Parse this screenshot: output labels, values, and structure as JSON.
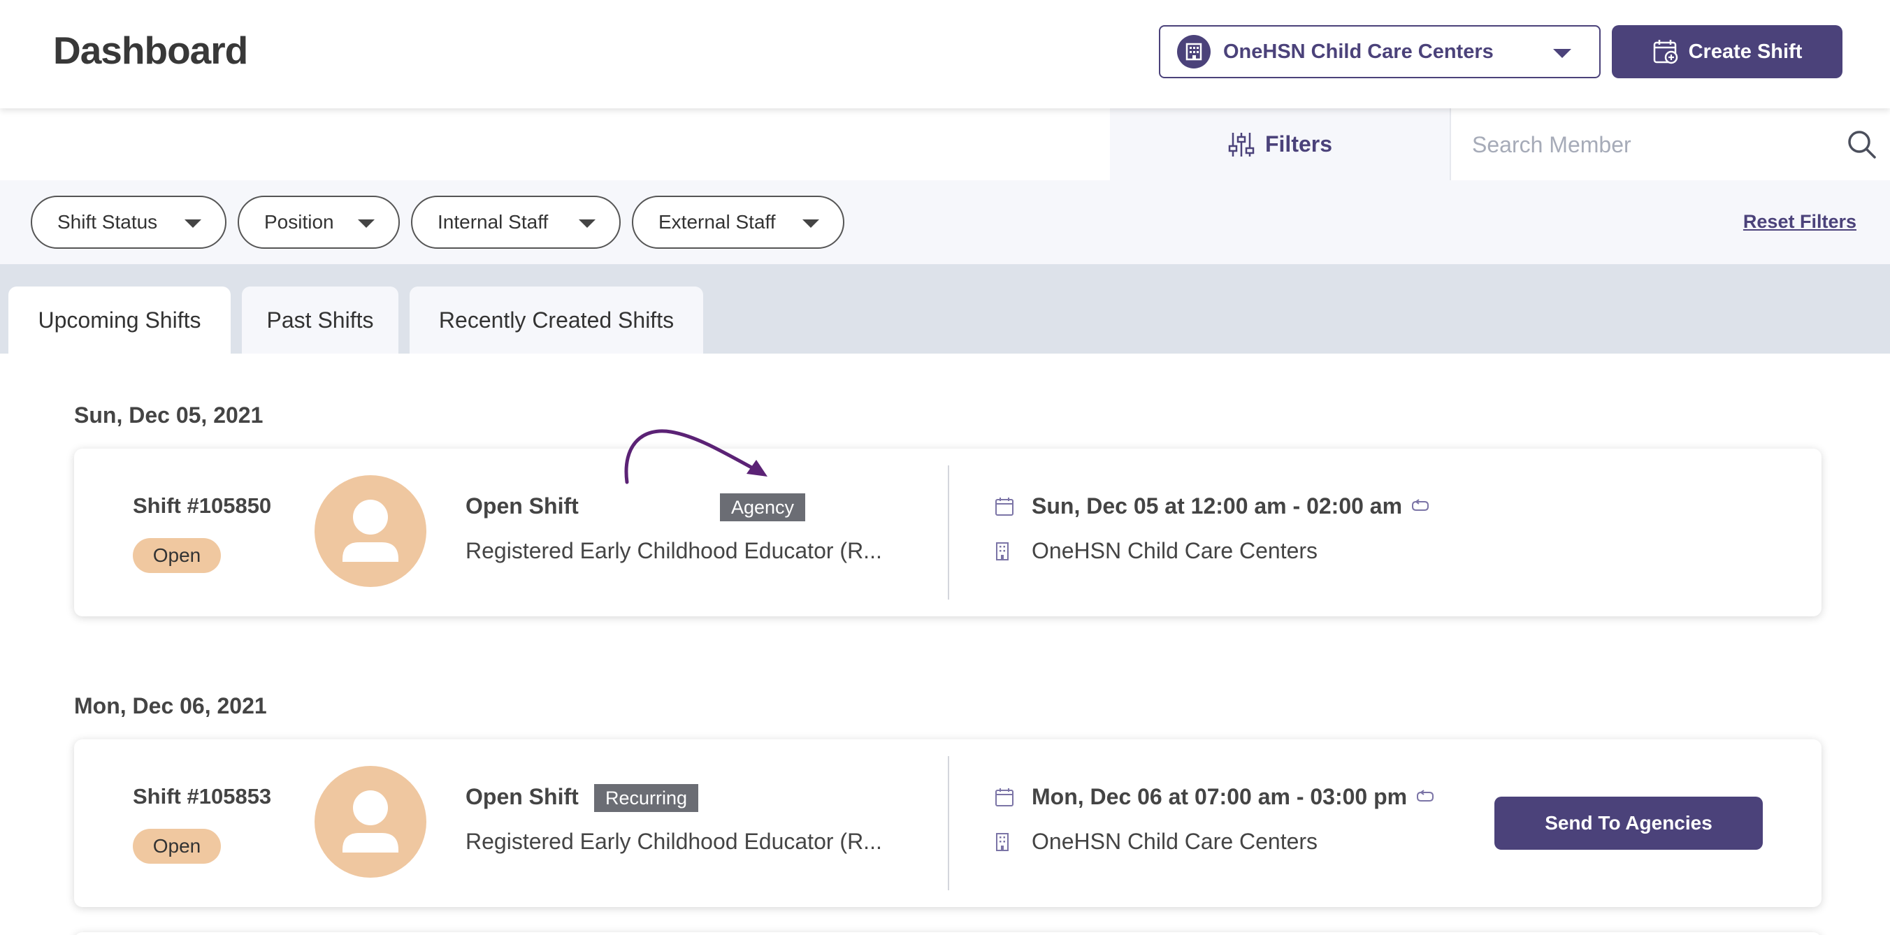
{
  "header": {
    "title": "Dashboard",
    "org_select": {
      "label": "OneHSN Child Care Centers",
      "icon": "building-icon"
    },
    "create_button": {
      "label": "Create Shift",
      "icon": "calendar-add-icon"
    }
  },
  "toolbar": {
    "filters_label": "Filters",
    "search_placeholder": "Search Member"
  },
  "chips": [
    {
      "label": "Shift Status"
    },
    {
      "label": "Position"
    },
    {
      "label": "Internal Staff"
    },
    {
      "label": "External Staff"
    }
  ],
  "reset_filters": "Reset Filters",
  "tabs": [
    {
      "label": "Upcoming Shifts",
      "active": true
    },
    {
      "label": "Past Shifts",
      "active": false
    },
    {
      "label": "Recently Created Shifts",
      "active": false
    }
  ],
  "groups": [
    {
      "date": "Sun, Dec 05, 2021",
      "shift": {
        "id": "Shift #105850",
        "status": "Open",
        "title": "Open Shift",
        "tag": "Agency",
        "position": "Registered Early Childhood Educator (R...",
        "time": "Sun, Dec 05 at 12:00 am - 02:00 am",
        "location": "OneHSN Child Care Centers"
      }
    },
    {
      "date": "Mon, Dec 06, 2021",
      "shift": {
        "id": "Shift #105853",
        "status": "Open",
        "title": "Open Shift",
        "tag": "Recurring",
        "position": "Registered Early Childhood Educator (R...",
        "time": "Mon, Dec 06 at 07:00 am - 03:00 pm",
        "location": "OneHSN Child Care Centers",
        "action": "Send To Agencies"
      }
    }
  ],
  "colors": {
    "primary": "#4b427a",
    "status_open_bg": "#f0c8a0",
    "tag_bg": "#6b6d74",
    "annotation_arrow": "#5b2275"
  }
}
